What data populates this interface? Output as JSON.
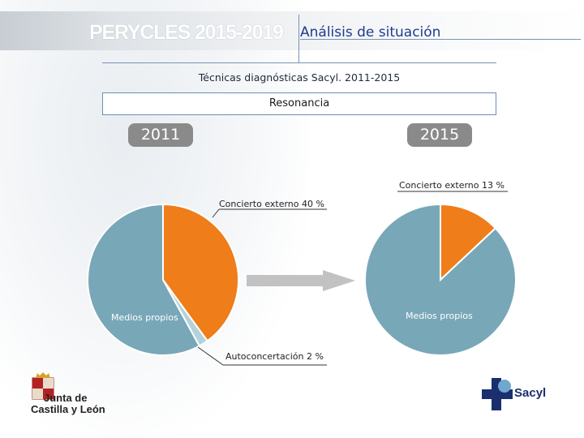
{
  "header": {
    "brand": "PERYCLES 2015-2019",
    "section_title": "Análisis de situación"
  },
  "subtitle": "Técnicas diagnósticas Sacyl. 2011-2015",
  "box_title": "Resonancia",
  "colors": {
    "medios_propios": "#78a7b8",
    "concierto_externo": "#ee7d1a",
    "autoconcertacion": "#b4d2dc",
    "year_badge": "#8a8a8a",
    "arrow": "#c2c2c2",
    "accent_blue": "#1f3c8c"
  },
  "chart_data": [
    {
      "type": "pie",
      "title": "2011",
      "slices": [
        {
          "label": "Concierto externo 40 %",
          "value": 40
        },
        {
          "label": "Autoconcertación 2 %",
          "value": 2
        },
        {
          "label": "Medios propios",
          "value": 58
        }
      ]
    },
    {
      "type": "pie",
      "title": "2015",
      "slices": [
        {
          "label": "Concierto externo 13 %",
          "value": 13
        },
        {
          "label": "Medios propios",
          "value": 87
        }
      ]
    }
  ],
  "logos": {
    "left": "Junta de Castilla y León",
    "left_line1": "Junta de",
    "left_line2": "Castilla y León",
    "right": "Sacyl"
  }
}
